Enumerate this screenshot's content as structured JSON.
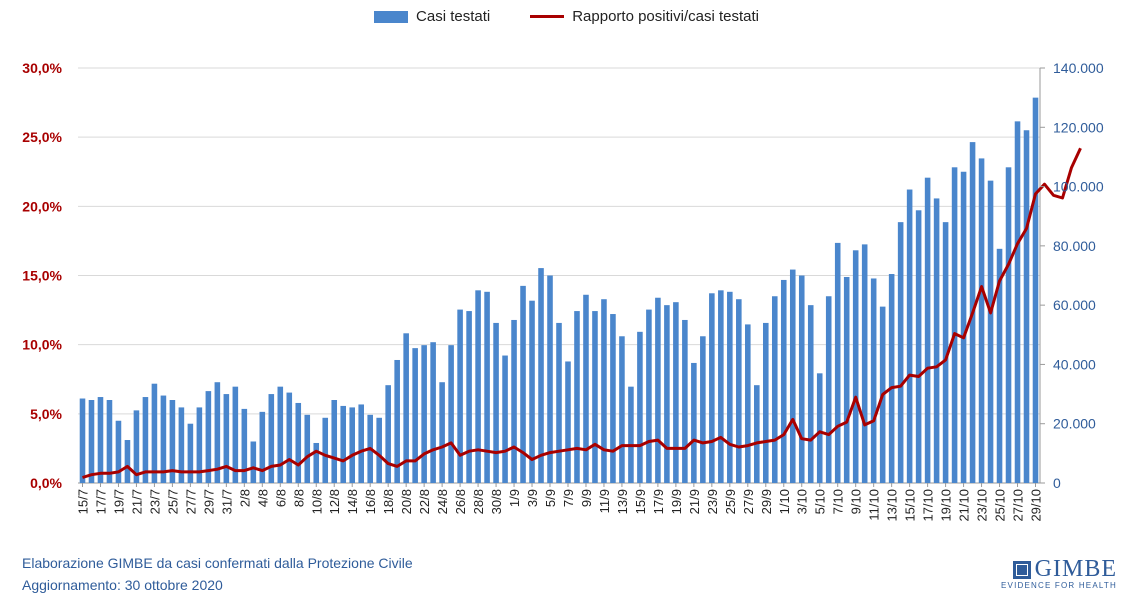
{
  "chart_data": {
    "type": "bar",
    "series": [
      {
        "name": "Casi testati",
        "kind": "bar",
        "axis": "right",
        "color": "#4a86cc",
        "values": [
          28500,
          28000,
          29000,
          28000,
          21000,
          14500,
          24500,
          29000,
          33500,
          29500,
          28000,
          25500,
          20000,
          25500,
          31000,
          34000,
          30000,
          32500,
          25000,
          14000,
          24000,
          30000,
          32500,
          30500,
          27000,
          23000,
          13500,
          22000,
          28000,
          26000,
          25500,
          26500,
          23000,
          22000,
          33000,
          41500,
          50500,
          45500,
          46500,
          47500,
          34000,
          46500,
          58500,
          58000,
          65000,
          64500,
          54000,
          43000,
          55000,
          66500,
          61500,
          72500,
          70000,
          54000,
          41000,
          58000,
          63500,
          58000,
          62000,
          57000,
          49500,
          32500,
          51000,
          58500,
          62500,
          60000,
          61000,
          55000,
          40500,
          49500,
          64000,
          65000,
          64500,
          62000,
          53500,
          33000,
          54000,
          63000,
          68500,
          72000,
          70000,
          60000,
          37000,
          63000,
          81000,
          69500,
          78500,
          80500,
          69000,
          59500,
          70500,
          88000,
          99000,
          92000,
          103000,
          96000,
          88000,
          106500,
          105000,
          115000,
          109500,
          102000,
          79000,
          106500,
          122000,
          119000,
          130000
        ]
      },
      {
        "name": "Rapporto positivi/casi testati",
        "kind": "line",
        "axis": "left",
        "color": "#a80000",
        "values": [
          0.4,
          0.6,
          0.7,
          0.7,
          0.8,
          1.2,
          0.6,
          0.8,
          0.8,
          0.8,
          0.9,
          0.8,
          0.8,
          0.8,
          0.9,
          1.0,
          1.2,
          0.9,
          0.9,
          1.1,
          0.9,
          1.2,
          1.3,
          1.7,
          1.3,
          1.9,
          2.3,
          2.0,
          1.8,
          1.6,
          2.0,
          2.3,
          2.5,
          2.0,
          1.4,
          1.2,
          1.6,
          1.6,
          2.1,
          2.4,
          2.6,
          2.9,
          2.0,
          2.3,
          2.4,
          2.3,
          2.2,
          2.3,
          2.6,
          2.2,
          1.7,
          2.0,
          2.2,
          2.3,
          2.4,
          2.5,
          2.4,
          2.8,
          2.4,
          2.3,
          2.7,
          2.7,
          2.7,
          3.0,
          3.1,
          2.5,
          2.5,
          2.5,
          3.1,
          2.9,
          3.0,
          3.3,
          2.8,
          2.6,
          2.7,
          2.9,
          3.0,
          3.1,
          3.5,
          4.6,
          3.2,
          3.1,
          3.7,
          3.5,
          4.1,
          4.4,
          6.2,
          4.2,
          4.5,
          6.4,
          6.9,
          7.0,
          7.8,
          7.7,
          8.3,
          8.4,
          8.9,
          10.8,
          10.5,
          12.3,
          14.2,
          12.3,
          14.6,
          15.8,
          17.3,
          18.4,
          20.9,
          21.6,
          20.8,
          20.6,
          22.8,
          24.2
        ]
      }
    ],
    "x_tick_labels": [
      "15/7",
      "17/7",
      "19/7",
      "21/7",
      "23/7",
      "25/7",
      "27/7",
      "29/7",
      "31/7",
      "2/8",
      "4/8",
      "6/8",
      "8/8",
      "10/8",
      "12/8",
      "14/8",
      "16/8",
      "18/8",
      "20/8",
      "22/8",
      "24/8",
      "26/8",
      "28/8",
      "30/8",
      "1/9",
      "3/9",
      "5/9",
      "7/9",
      "9/9",
      "11/9",
      "13/9",
      "15/9",
      "17/9",
      "19/9",
      "21/9",
      "23/9",
      "25/9",
      "27/9",
      "29/9",
      "1/10",
      "3/10",
      "5/10",
      "7/10",
      "9/10",
      "11/10",
      "13/10",
      "15/10",
      "17/10",
      "19/10",
      "21/10",
      "23/10",
      "25/10",
      "27/10",
      "29/10"
    ],
    "y_left": {
      "min": 0,
      "max": 30,
      "ticks": [
        "0,0%",
        "5,0%",
        "10,0%",
        "15,0%",
        "20,0%",
        "25,0%",
        "30,0%"
      ]
    },
    "y_right": {
      "min": 0,
      "max": 140000,
      "ticks": [
        "0",
        "20.000",
        "40.000",
        "60.000",
        "80.000",
        "100.000",
        "120.000",
        "140.000"
      ]
    },
    "grid": "horizontal",
    "legend_position": "top-center",
    "left_axis_color": "#a80000",
    "right_axis_color": "#2f5c9a"
  },
  "legend": {
    "bar_label": "Casi testati",
    "line_label": "Rapporto positivi/casi testati"
  },
  "footer": {
    "line1": "Elaborazione GIMBE da casi confermati dalla Protezione Civile",
    "line2": "Aggiornamento: 30 ottobre 2020"
  },
  "logo": {
    "name": "GIMBE",
    "tagline": "EVIDENCE FOR HEALTH"
  }
}
